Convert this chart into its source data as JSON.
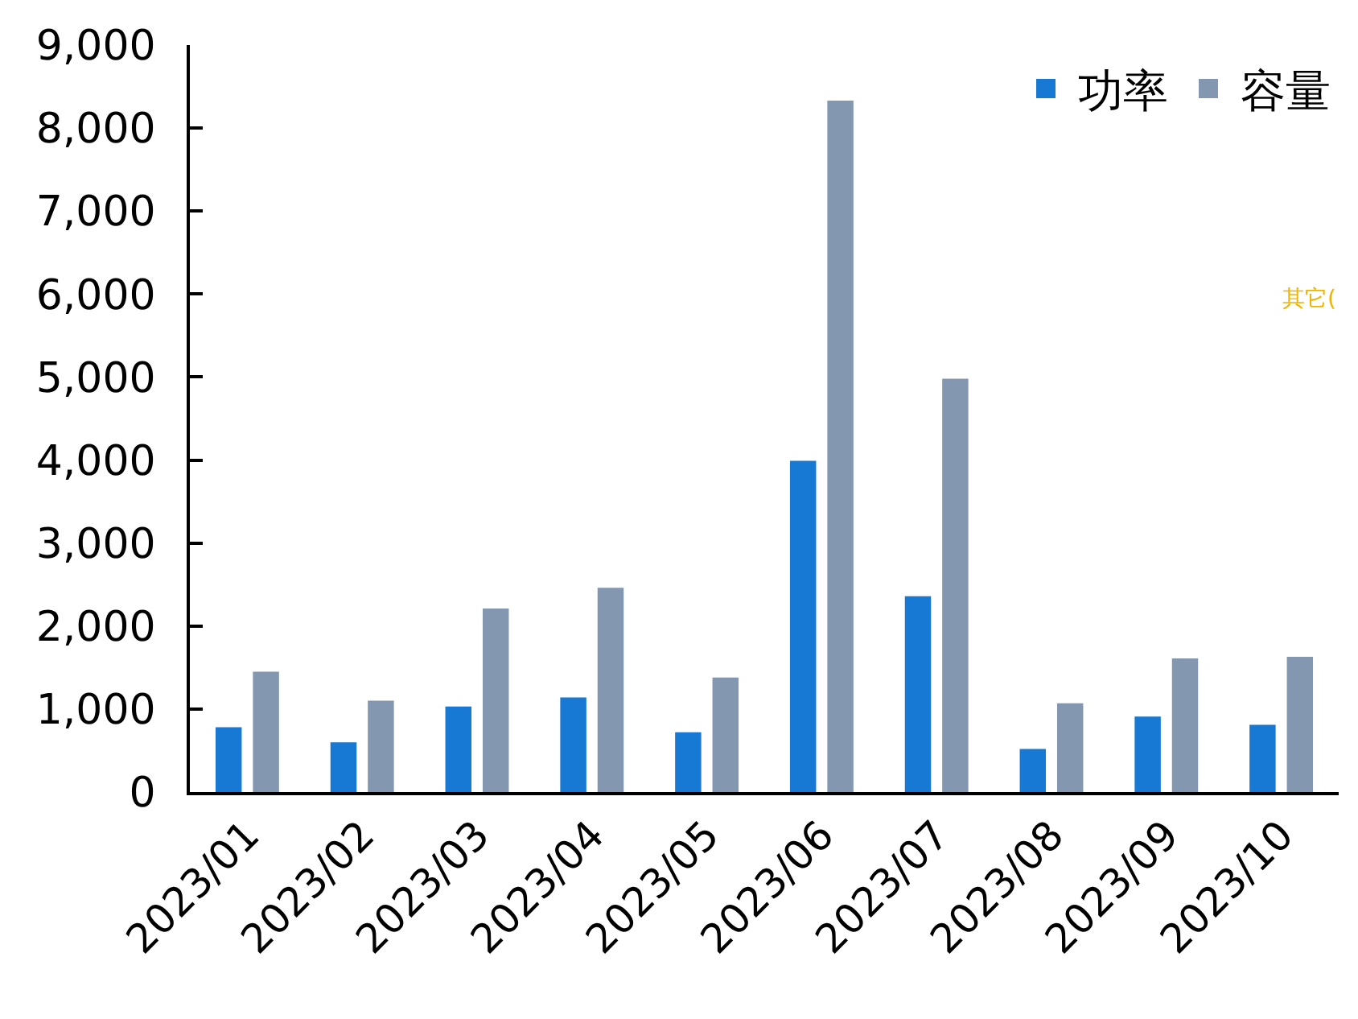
{
  "chart_data": {
    "type": "bar",
    "categories": [
      "2023/01",
      "2023/02",
      "2023/03",
      "2023/04",
      "2023/05",
      "2023/06",
      "2023/07",
      "2023/08",
      "2023/09",
      "2023/10"
    ],
    "series": [
      {
        "name": "功率",
        "color": "#1779d4",
        "values": [
          780,
          600,
          1030,
          1140,
          720,
          3990,
          2360,
          520,
          910,
          810
        ]
      },
      {
        "name": "容量",
        "color": "#8497b0",
        "values": [
          1450,
          1100,
          2210,
          2460,
          1380,
          8330,
          4980,
          1070,
          1610,
          1630
        ]
      }
    ],
    "ylim": [
      0,
      9000
    ],
    "yticks": [
      {
        "value": 0,
        "label": "0"
      },
      {
        "value": 1000,
        "label": "1,000"
      },
      {
        "value": 2000,
        "label": "2,000"
      },
      {
        "value": 3000,
        "label": "3,000"
      },
      {
        "value": 4000,
        "label": "4,000"
      },
      {
        "value": 5000,
        "label": "5,000"
      },
      {
        "value": 6000,
        "label": "6,000"
      },
      {
        "value": 7000,
        "label": "7,000"
      },
      {
        "value": 8000,
        "label": "8,000"
      },
      {
        "value": 9000,
        "label": "9,000"
      }
    ],
    "grid": false,
    "legend": "top right",
    "annotations": [
      "其它("
    ]
  }
}
